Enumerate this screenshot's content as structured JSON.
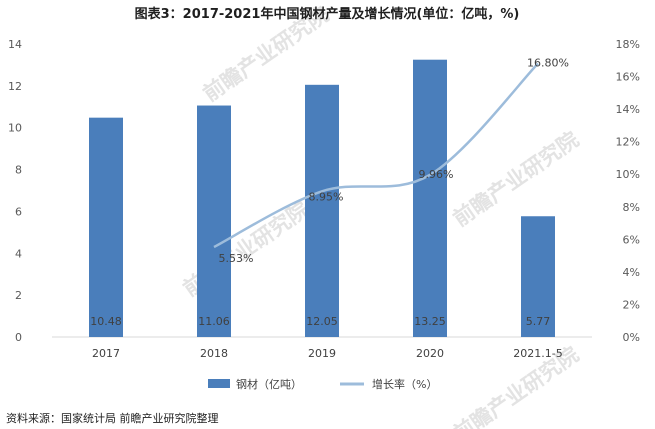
{
  "chart_data": {
    "type": "bar",
    "title": "图表3：2017-2021年中国钢材产量及增长情况(单位：亿吨，%)",
    "categories": [
      "2017",
      "2018",
      "2019",
      "2020",
      "2021.1-5"
    ],
    "series": [
      {
        "name": "钢材（亿吨）",
        "type": "bar",
        "axis": "left",
        "color": "#4a7ebb",
        "values": [
          10.48,
          11.06,
          12.05,
          13.25,
          5.77
        ],
        "labels": [
          "10.48",
          "11.06",
          "12.05",
          "13.25",
          "5.77"
        ]
      },
      {
        "name": "增长率（%）",
        "type": "line",
        "axis": "right",
        "color": "#9dbcdb",
        "values": [
          null,
          5.53,
          8.95,
          9.96,
          16.8
        ],
        "labels": [
          "",
          "5.53%",
          "8.95%",
          "9.96%",
          "16.80%"
        ]
      }
    ],
    "y_left": {
      "min": 0,
      "max": 14,
      "step": 2,
      "ticks": [
        "0",
        "2",
        "4",
        "6",
        "8",
        "10",
        "12",
        "14"
      ]
    },
    "y_right": {
      "min": 0,
      "max": 18,
      "step": 2,
      "ticks": [
        "0%",
        "2%",
        "4%",
        "6%",
        "8%",
        "10%",
        "12%",
        "14%",
        "16%",
        "18%"
      ]
    },
    "grid": false,
    "legend_position": "bottom"
  },
  "source": "资料来源：国家统计局 前瞻产业研究院整理",
  "watermark": "前瞻产业研究院"
}
